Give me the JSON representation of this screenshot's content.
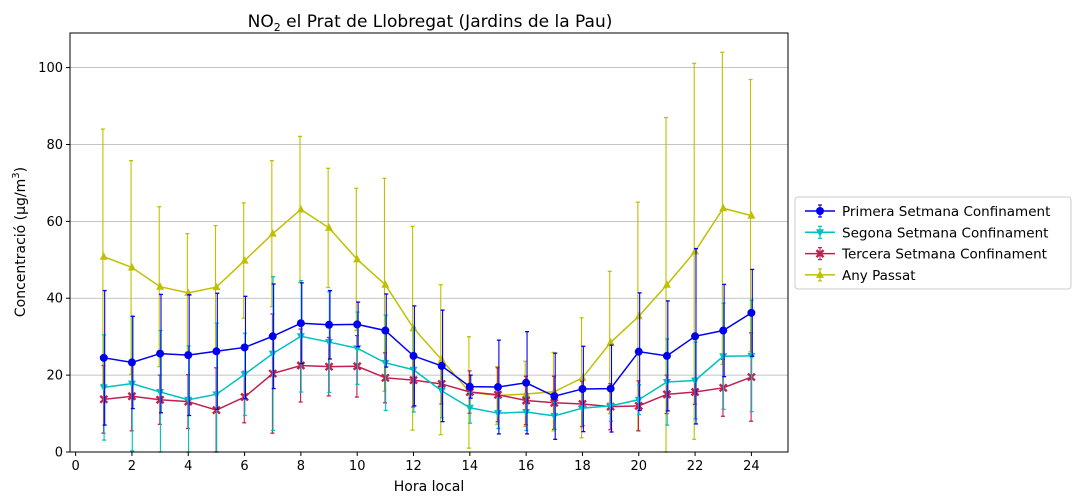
{
  "chart_data": {
    "type": "line",
    "title_main": "NO",
    "title_sub": "2",
    "title_rest": " el Prat de Llobregat (Jardins de la Pau)",
    "xlabel": "Hora local",
    "ylabel_main": "Concentració (µg/m",
    "ylabel_sup": "3",
    "ylabel_end": ")",
    "xlim": [
      -0.2,
      25.3
    ],
    "ylim": [
      0,
      109
    ],
    "xticks": [
      0,
      2,
      4,
      6,
      8,
      10,
      12,
      14,
      16,
      18,
      20,
      22,
      24
    ],
    "yticks": [
      0,
      20,
      40,
      60,
      80,
      100
    ],
    "grid": "horizontal",
    "legend_position": "outside-right",
    "x": [
      1,
      2,
      3,
      4,
      5,
      6,
      7,
      8,
      9,
      10,
      11,
      12,
      13,
      14,
      15,
      16,
      17,
      18,
      19,
      20,
      21,
      22,
      23,
      24
    ],
    "series": [
      {
        "name": "Primera Setmana Confinament",
        "color": "#0000ee",
        "marker": "circle",
        "values": [
          24.5,
          23.3,
          25.6,
          25.2,
          26.2,
          27.2,
          30.1,
          33.5,
          33.1,
          33.2,
          31.6,
          25.0,
          22.4,
          17.0,
          16.9,
          18.0,
          14.5,
          16.4,
          16.5,
          26.1,
          25.0,
          30.1,
          31.6,
          36.2
        ],
        "errors": [
          17.5,
          12.0,
          15.4,
          15.7,
          15.1,
          13.3,
          13.6,
          10.5,
          8.9,
          5.8,
          9.5,
          13.0,
          14.5,
          3.0,
          12.2,
          13.3,
          11.2,
          11.1,
          11.3,
          15.3,
          14.3,
          22.8,
          12.0,
          11.3
        ]
      },
      {
        "name": "Segona Setmana Confinament",
        "color": "#00c0c0",
        "marker": "triangle-down",
        "values": [
          16.8,
          17.8,
          15.6,
          13.6,
          15.0,
          20.2,
          25.6,
          30.1,
          28.6,
          27.0,
          23.2,
          21.4,
          15.9,
          11.5,
          10.1,
          10.4,
          9.4,
          11.4,
          12.0,
          13.6,
          18.2,
          18.6,
          24.9,
          25.0
        ],
        "errors": [
          13.7,
          17.5,
          16.0,
          14.0,
          18.5,
          10.7,
          20.0,
          14.5,
          13.1,
          9.4,
          12.4,
          11.0,
          7.0,
          4.0,
          4.0,
          4.8,
          3.5,
          4.5,
          4.0,
          3.9,
          11.2,
          10.0,
          13.8,
          14.5
        ]
      },
      {
        "name": "Tercera Setmana Confinament",
        "color": "#c02050",
        "marker": "cross",
        "values": [
          13.7,
          14.5,
          13.6,
          13.1,
          10.9,
          14.3,
          20.4,
          22.5,
          22.2,
          22.3,
          19.3,
          18.7,
          17.7,
          15.6,
          14.9,
          13.4,
          12.8,
          12.5,
          11.8,
          12.0,
          15.0,
          15.6,
          16.7,
          19.5
        ],
        "errors": [
          8.8,
          9.0,
          6.4,
          7.0,
          11.0,
          6.7,
          15.5,
          9.5,
          7.6,
          8.0,
          6.5,
          7.0,
          5.2,
          5.5,
          7.0,
          6.3,
          6.9,
          5.9,
          6.0,
          6.5,
          5.0,
          3.2,
          7.4,
          11.5
        ]
      },
      {
        "name": "Any Passat",
        "color": "#c0c000",
        "marker": "triangle-up",
        "values": [
          50.8,
          48.0,
          43.0,
          41.4,
          42.9,
          49.8,
          56.8,
          63.1,
          58.3,
          50.1,
          43.5,
          32.2,
          24.0,
          15.5,
          14.7,
          15.1,
          15.7,
          19.3,
          28.5,
          35.3,
          43.5,
          52.2,
          63.4,
          61.5
        ],
        "errors": [
          33.2,
          27.8,
          20.8,
          15.4,
          16.0,
          15.0,
          19.0,
          19.0,
          15.5,
          18.5,
          27.7,
          26.5,
          19.5,
          14.5,
          7.5,
          8.5,
          10.2,
          15.6,
          18.5,
          29.7,
          43.5,
          48.9,
          40.6,
          35.4
        ]
      }
    ]
  }
}
